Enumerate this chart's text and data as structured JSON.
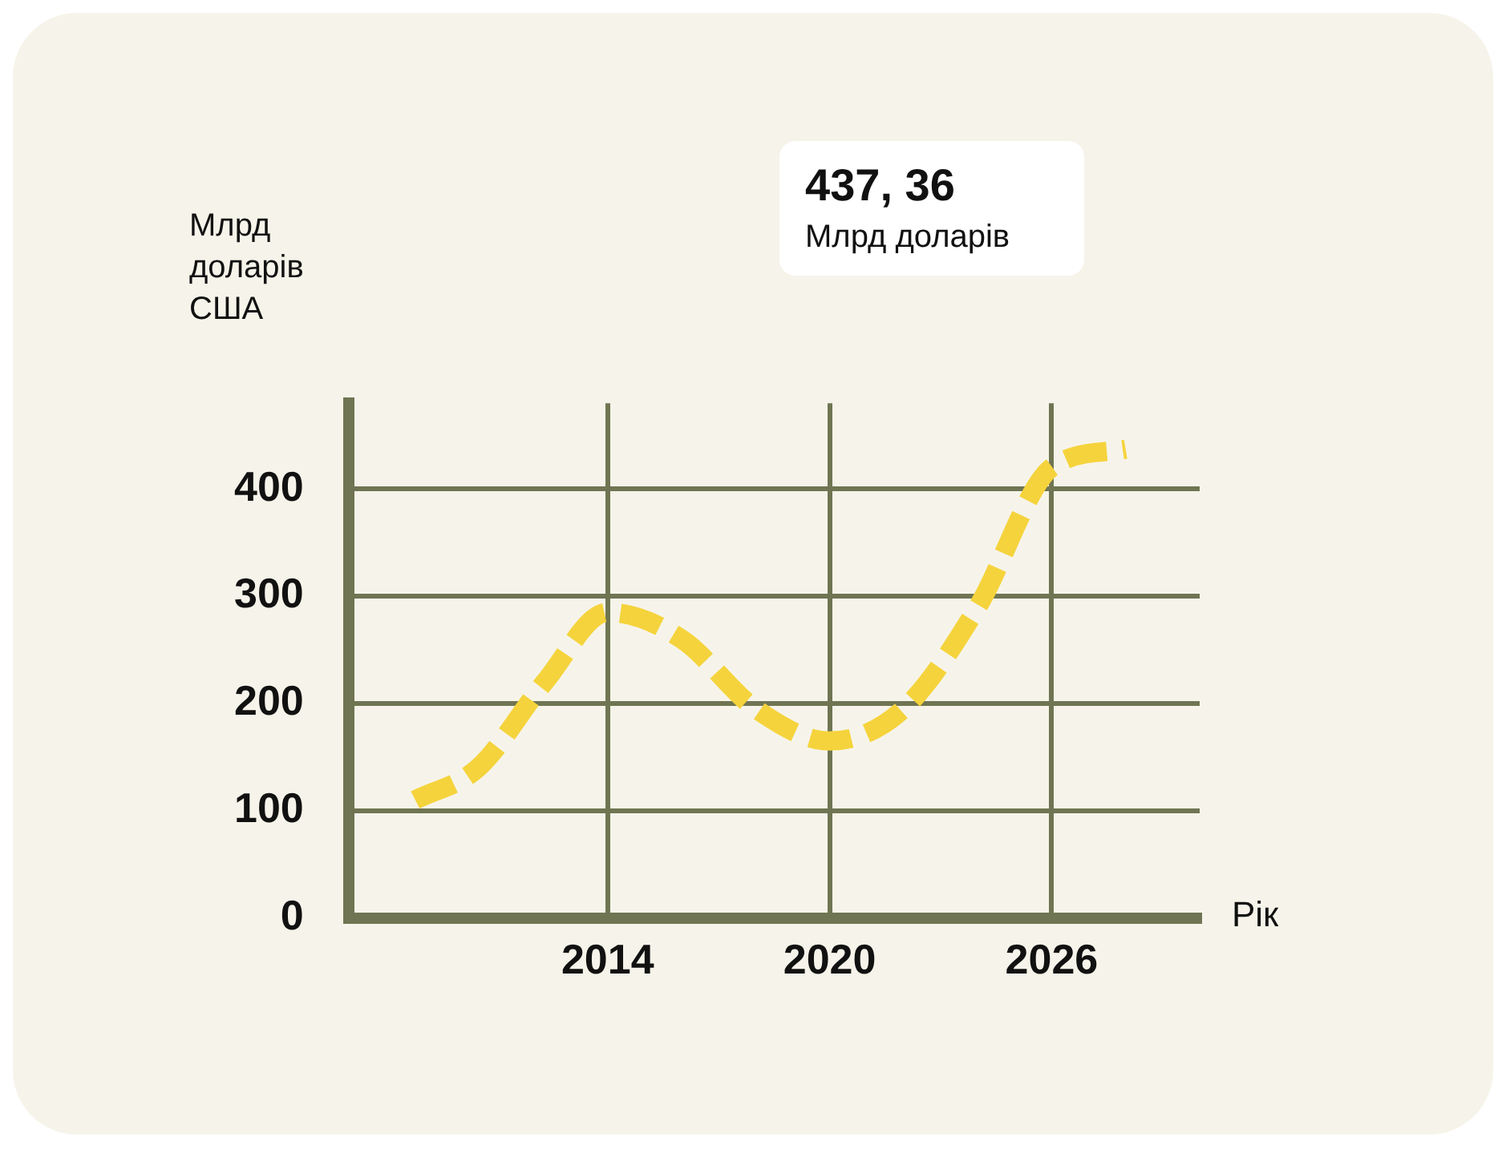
{
  "chart_data": {
    "type": "line",
    "ylabel": "Млрд доларів США",
    "xlabel": "Рік",
    "x": [
      2008.8,
      2010.5,
      2012.3,
      2014,
      2016,
      2018,
      2020,
      2022,
      2024,
      2026,
      2028
    ],
    "series": [
      {
        "color": "#f5d33c",
        "values": [
          110,
          140,
          220,
          285,
          260,
          195,
          165,
          195,
          290,
          420,
          437
        ]
      }
    ],
    "xlim": [
      2007,
      2030
    ],
    "xticks": [
      2014,
      2020,
      2026
    ],
    "ylim": [
      0,
      480
    ],
    "yticks": [
      0,
      100,
      200,
      300,
      400
    ],
    "grid": true,
    "legend": false,
    "marker": "none",
    "line_style": "dashed",
    "annotations": [
      "437, 36",
      "Млрд доларів"
    ]
  }
}
